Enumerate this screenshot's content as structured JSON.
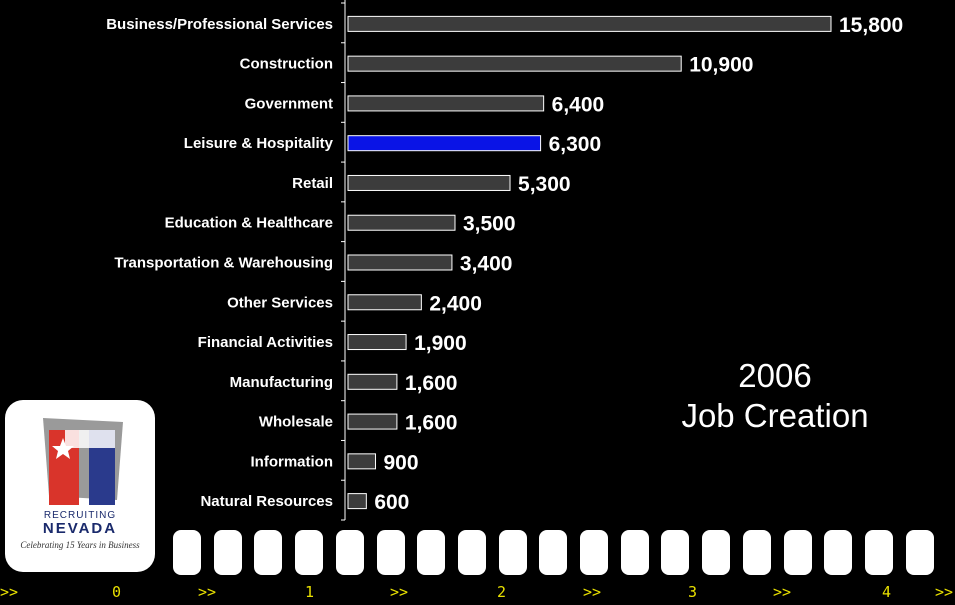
{
  "chart_data": {
    "type": "bar",
    "orientation": "horizontal",
    "categories": [
      "Business/Professional Services",
      "Construction",
      "Government",
      "Leisure & Hospitality",
      "Retail",
      "Education & Healthcare",
      "Transportation & Warehousing",
      "Other Services",
      "Financial Activities",
      "Manufacturing",
      "Wholesale",
      "Information",
      "Natural Resources"
    ],
    "values": [
      15800,
      10900,
      6400,
      6300,
      5300,
      3500,
      3400,
      2400,
      1900,
      1600,
      1600,
      900,
      600
    ],
    "value_labels": [
      "15,800",
      "10,900",
      "6,400",
      "6,300",
      "5,300",
      "3,500",
      "3,400",
      "2,400",
      "1,900",
      "1,600",
      "1,600",
      "900",
      "600"
    ],
    "highlight_index": 3,
    "bar_color": "#3c3c3c",
    "highlight_color": "#0a14e6",
    "grid": false,
    "xlim": [
      0,
      16000
    ],
    "annotation": [
      "2006",
      "Job Creation"
    ]
  },
  "logo": {
    "sub": "RECRUITING",
    "main": "NEVADA",
    "tagline": "Celebrating 15 Years in Business"
  },
  "ruler": [
    ">>",
    "0",
    ">>",
    "1",
    ">>",
    "2",
    ">>",
    "3",
    ">>",
    "4",
    ">>"
  ]
}
